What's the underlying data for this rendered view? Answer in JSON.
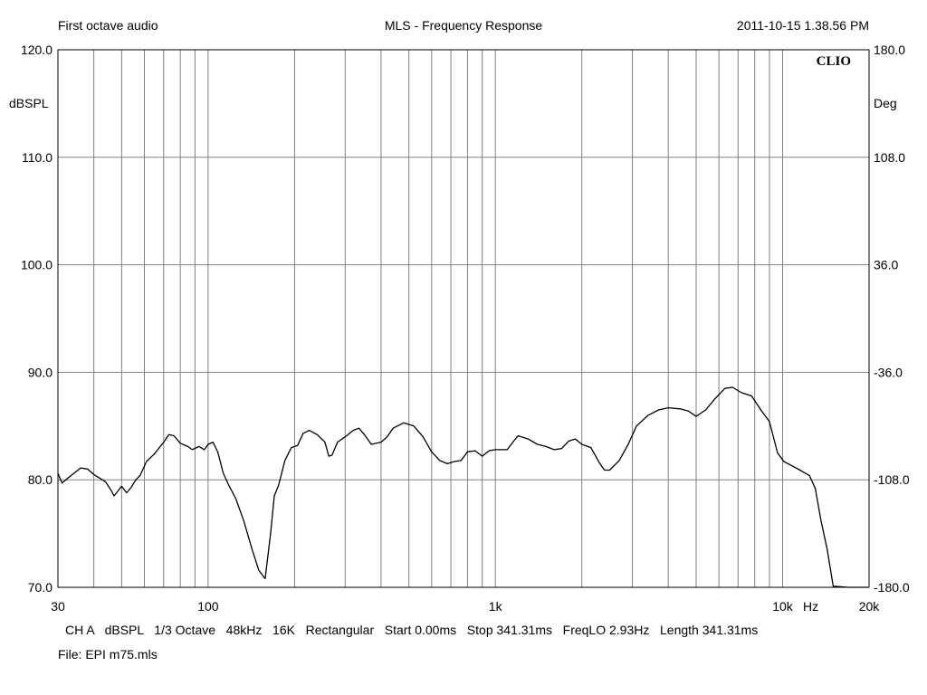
{
  "header": {
    "left": "First octave audio",
    "title": "MLS - Frequency Response",
    "right": "2011-10-15 1.38.56 PM",
    "brand": "CLIO"
  },
  "footer": {
    "settings": "CH A   dBSPL   1/3 Octave   48kHz   16K   Rectangular   Start 0.00ms   Stop 341.31ms   FreqLO 2.93Hz   Length 341.31ms",
    "file": "File: EPI m75.mls"
  },
  "chart_data": {
    "type": "line",
    "title": "MLS - Frequency Response",
    "xlabel": "Hz",
    "ylabel": "dBSPL",
    "y2label": "Deg",
    "xscale": "log",
    "xlim": [
      30,
      20000
    ],
    "ylim": [
      70,
      120
    ],
    "y2lim": [
      -180,
      180
    ],
    "grid": true,
    "x_tick_labels": [
      {
        "value": 30,
        "label": "30"
      },
      {
        "value": 100,
        "label": "100"
      },
      {
        "value": 1000,
        "label": "1k"
      },
      {
        "value": 10000,
        "label": "10k"
      },
      {
        "value": 20000,
        "label": "20k"
      }
    ],
    "y_ticks": [
      {
        "value": 120,
        "label": "120.0"
      },
      {
        "value": 110,
        "label": "110.0"
      },
      {
        "value": 100,
        "label": "100.0"
      },
      {
        "value": 90,
        "label": "90.0"
      },
      {
        "value": 80,
        "label": "80.0"
      },
      {
        "value": 70,
        "label": "70.0"
      }
    ],
    "y2_ticks": [
      {
        "value": 180,
        "label": "180.0"
      },
      {
        "value": 108,
        "label": "108.0"
      },
      {
        "value": 36,
        "label": "36.0"
      },
      {
        "value": -36,
        "label": "-36.0"
      },
      {
        "value": -108,
        "label": "-108.0"
      },
      {
        "value": -180,
        "label": "-180.0"
      }
    ],
    "series": [
      {
        "color": "#000000",
        "points": [
          [
            30,
            80.6
          ],
          [
            31,
            79.7
          ],
          [
            33,
            80.3
          ],
          [
            36,
            81.1
          ],
          [
            38,
            81.0
          ],
          [
            40,
            80.5
          ],
          [
            44,
            79.8
          ],
          [
            46,
            79.0
          ],
          [
            47,
            78.5
          ],
          [
            48,
            78.8
          ],
          [
            50,
            79.4
          ],
          [
            52,
            78.8
          ],
          [
            54,
            79.3
          ],
          [
            56,
            80.0
          ],
          [
            58,
            80.4
          ],
          [
            61,
            81.7
          ],
          [
            65,
            82.4
          ],
          [
            70,
            83.5
          ],
          [
            73,
            84.2
          ],
          [
            76,
            84.1
          ],
          [
            80,
            83.4
          ],
          [
            85,
            83.1
          ],
          [
            88,
            82.8
          ],
          [
            93,
            83.1
          ],
          [
            97,
            82.8
          ],
          [
            100,
            83.3
          ],
          [
            104,
            83.5
          ],
          [
            108,
            82.6
          ],
          [
            113,
            80.6
          ],
          [
            118,
            79.5
          ],
          [
            125,
            78.2
          ],
          [
            133,
            76.2
          ],
          [
            142,
            73.6
          ],
          [
            150,
            71.6
          ],
          [
            158,
            70.8
          ],
          [
            165,
            75.0
          ],
          [
            170,
            78.5
          ],
          [
            176,
            79.5
          ],
          [
            185,
            81.8
          ],
          [
            195,
            83.0
          ],
          [
            205,
            83.2
          ],
          [
            214,
            84.3
          ],
          [
            225,
            84.6
          ],
          [
            240,
            84.2
          ],
          [
            255,
            83.5
          ],
          [
            263,
            82.2
          ],
          [
            270,
            82.3
          ],
          [
            282,
            83.5
          ],
          [
            300,
            84.0
          ],
          [
            320,
            84.6
          ],
          [
            335,
            84.8
          ],
          [
            350,
            84.2
          ],
          [
            370,
            83.3
          ],
          [
            400,
            83.5
          ],
          [
            420,
            84.0
          ],
          [
            440,
            84.8
          ],
          [
            480,
            85.3
          ],
          [
            520,
            85.0
          ],
          [
            560,
            84.0
          ],
          [
            600,
            82.6
          ],
          [
            640,
            81.8
          ],
          [
            680,
            81.5
          ],
          [
            720,
            81.7
          ],
          [
            760,
            81.8
          ],
          [
            800,
            82.6
          ],
          [
            850,
            82.7
          ],
          [
            900,
            82.2
          ],
          [
            950,
            82.7
          ],
          [
            1000,
            82.8
          ],
          [
            1100,
            82.8
          ],
          [
            1150,
            83.5
          ],
          [
            1200,
            84.1
          ],
          [
            1300,
            83.8
          ],
          [
            1400,
            83.3
          ],
          [
            1500,
            83.1
          ],
          [
            1600,
            82.8
          ],
          [
            1700,
            82.9
          ],
          [
            1800,
            83.6
          ],
          [
            1900,
            83.8
          ],
          [
            2000,
            83.3
          ],
          [
            2150,
            83.0
          ],
          [
            2300,
            81.6
          ],
          [
            2400,
            80.9
          ],
          [
            2500,
            80.9
          ],
          [
            2700,
            81.8
          ],
          [
            2900,
            83.3
          ],
          [
            3100,
            85.0
          ],
          [
            3400,
            86.0
          ],
          [
            3700,
            86.5
          ],
          [
            4000,
            86.7
          ],
          [
            4400,
            86.6
          ],
          [
            4700,
            86.4
          ],
          [
            5000,
            85.9
          ],
          [
            5400,
            86.5
          ],
          [
            5800,
            87.5
          ],
          [
            6300,
            88.5
          ],
          [
            6700,
            88.6
          ],
          [
            7200,
            88.1
          ],
          [
            7800,
            87.8
          ],
          [
            8400,
            86.5
          ],
          [
            9000,
            85.4
          ],
          [
            9600,
            82.5
          ],
          [
            10100,
            81.7
          ],
          [
            10800,
            81.3
          ],
          [
            11500,
            80.9
          ],
          [
            12400,
            80.4
          ],
          [
            13000,
            79.2
          ],
          [
            13600,
            76.2
          ],
          [
            14300,
            73.5
          ],
          [
            15000,
            70.1
          ],
          [
            17000,
            70.0
          ],
          [
            19800,
            70.0
          ]
        ]
      }
    ]
  }
}
